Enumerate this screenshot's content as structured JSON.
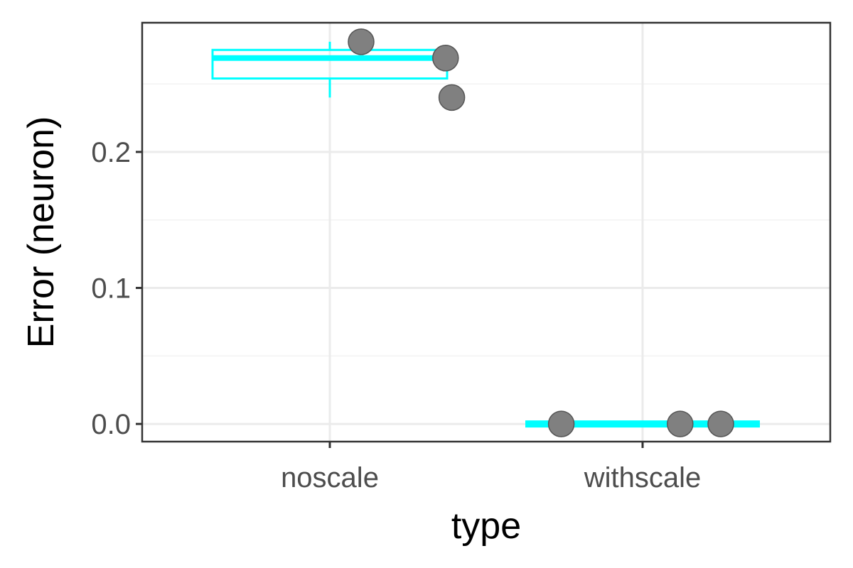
{
  "chart_data": {
    "type": "box",
    "xlabel": "type",
    "ylabel": "Error (neuron)",
    "categories": [
      "noscale",
      "withscale"
    ],
    "ylim": [
      -0.013,
      0.295
    ],
    "yticks": [
      0.0,
      0.1,
      0.2
    ],
    "ytick_labels": [
      "0.0",
      "0.1",
      "0.2"
    ],
    "grid": true,
    "box_color": "#00ffff",
    "point_color": "#808080",
    "boxes": [
      {
        "category": "noscale",
        "min": 0.24,
        "q1": 0.254,
        "median": 0.269,
        "q3": 0.275,
        "max": 0.281
      },
      {
        "category": "withscale",
        "min": 0.0,
        "q1": 0.0,
        "median": 0.0,
        "q3": 0.0,
        "max": 0.0
      }
    ],
    "points": [
      {
        "category": "noscale",
        "jitter": 0.1,
        "y": 0.281
      },
      {
        "category": "noscale",
        "jitter": 0.37,
        "y": 0.269
      },
      {
        "category": "noscale",
        "jitter": 0.39,
        "y": 0.24
      },
      {
        "category": "withscale",
        "jitter": -0.26,
        "y": 0.0
      },
      {
        "category": "withscale",
        "jitter": 0.12,
        "y": 0.0
      },
      {
        "category": "withscale",
        "jitter": 0.25,
        "y": 0.0
      }
    ]
  }
}
